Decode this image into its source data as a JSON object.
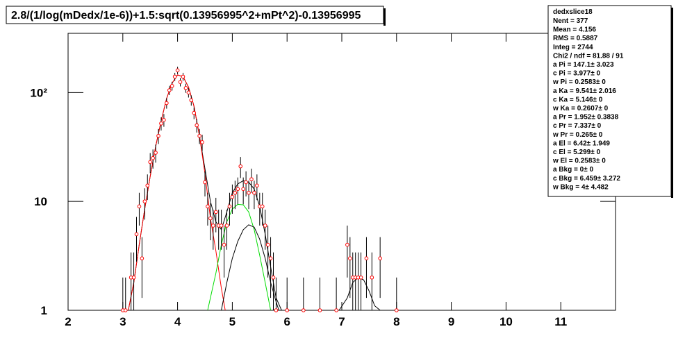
{
  "chart_data": {
    "type": "histogram-fit",
    "title": "2.8/(1/log(mDedx/1e-6))+1.5:sqrt(0.13956995^2+mPt^2)-0.13956995",
    "log_y": true,
    "xlim": [
      2,
      12
    ],
    "ylim": [
      1,
      350
    ],
    "xticks": [
      2,
      3,
      4,
      5,
      6,
      7,
      8,
      9,
      10,
      11
    ],
    "yticks": [
      1,
      10,
      {
        "value": 100,
        "label": "10²"
      }
    ],
    "points": {
      "color": "#ff0000",
      "x": [
        3.0,
        3.05,
        3.15,
        3.2,
        3.25,
        3.3,
        3.35,
        3.4,
        3.45,
        3.5,
        3.55,
        3.6,
        3.65,
        3.7,
        3.75,
        3.8,
        3.85,
        3.9,
        3.95,
        4.0,
        4.05,
        4.1,
        4.15,
        4.2,
        4.25,
        4.3,
        4.35,
        4.4,
        4.45,
        4.5,
        4.55,
        4.6,
        4.65,
        4.7,
        4.75,
        4.8,
        4.85,
        4.9,
        4.95,
        5.0,
        5.05,
        5.1,
        5.15,
        5.2,
        5.25,
        5.3,
        5.35,
        5.4,
        5.45,
        5.5,
        5.55,
        5.6,
        5.65,
        5.7,
        5.75,
        5.8,
        6.0,
        6.3,
        6.6,
        6.9,
        7.1,
        7.15,
        7.2,
        7.25,
        7.3,
        7.35,
        7.45,
        7.55,
        7.7,
        8.0
      ],
      "values": [
        1,
        1,
        2,
        2,
        5,
        9,
        3,
        10,
        14,
        23,
        25,
        28,
        40,
        52,
        56,
        80,
        105,
        115,
        140,
        160,
        125,
        140,
        110,
        100,
        85,
        65,
        50,
        40,
        35,
        15,
        9,
        7,
        6,
        8,
        6,
        6,
        4,
        6,
        9,
        11,
        12,
        13,
        21,
        13,
        15,
        12,
        16,
        12,
        14,
        9,
        9,
        6,
        4,
        3,
        2,
        1,
        1,
        1,
        1,
        1,
        4,
        3,
        2,
        2,
        2,
        2,
        3,
        2,
        3,
        1
      ],
      "errors": [
        1,
        1,
        1.4,
        1.4,
        2.2,
        3,
        1.7,
        3.2,
        3.7,
        4.8,
        5,
        5.3,
        6.3,
        7.2,
        7.5,
        8.9,
        10.2,
        10.7,
        11.8,
        12.6,
        11.2,
        11.8,
        10.5,
        10,
        9.2,
        8.1,
        7.1,
        6.3,
        5.9,
        3.9,
        3,
        2.6,
        2.4,
        2.8,
        2.4,
        2.4,
        2,
        2.4,
        3,
        3.3,
        3.5,
        3.6,
        4.6,
        3.6,
        3.9,
        3.5,
        4,
        3.5,
        3.7,
        3,
        3,
        2.4,
        2,
        1.7,
        1.4,
        1,
        1,
        1,
        1,
        1,
        2,
        1.7,
        1.4,
        1.4,
        1.4,
        1.4,
        1.7,
        1.4,
        1.7,
        1
      ]
    },
    "series": [
      {
        "color": "#000000",
        "x": [
          3.1,
          3.2,
          3.3,
          3.4,
          3.5,
          3.6,
          3.7,
          3.8,
          3.9,
          4.0,
          4.1,
          4.2,
          4.3,
          4.4,
          4.5,
          4.6,
          4.7,
          4.8,
          4.9,
          5.0,
          5.1,
          5.2,
          5.3,
          5.4,
          5.5,
          5.6,
          5.7,
          5.8,
          5.9,
          6.95,
          7.1,
          7.2,
          7.3,
          7.4,
          7.5,
          7.6,
          7.7
        ],
        "values": [
          1,
          1.8,
          4,
          8.5,
          17,
          32,
          55,
          88,
          122,
          145,
          140,
          112,
          75,
          40,
          20,
          10,
          6.5,
          5.5,
          8,
          12,
          14.5,
          15.5,
          15,
          13,
          9,
          5,
          2.5,
          1.3,
          1,
          1,
          1.3,
          1.8,
          2,
          1.9,
          1.5,
          1.1,
          1
        ]
      },
      {
        "color": "#ff0000",
        "x": [
          3.1,
          3.2,
          3.3,
          3.4,
          3.5,
          3.6,
          3.7,
          3.8,
          3.9,
          4.0,
          4.1,
          4.2,
          4.3,
          4.4,
          4.5,
          4.6,
          4.7,
          4.8,
          4.87
        ],
        "values": [
          1,
          1.8,
          4,
          8.5,
          17,
          32,
          55,
          88,
          122,
          145,
          140,
          112,
          75,
          40,
          18,
          7,
          3.5,
          1.6,
          1
        ]
      },
      {
        "color": "#00dd00",
        "x": [
          4.55,
          4.7,
          4.8,
          4.9,
          5.0,
          5.1,
          5.2,
          5.3,
          5.4,
          5.5,
          5.6,
          5.7
        ],
        "values": [
          1,
          2.2,
          4,
          6.5,
          8.5,
          9.4,
          9.3,
          8,
          5.5,
          3.2,
          1.8,
          1
        ]
      },
      {
        "color": "#000000",
        "x": [
          4.8,
          4.9,
          5.0,
          5.1,
          5.2,
          5.3,
          5.4,
          5.5,
          5.6,
          5.7,
          5.8,
          5.85
        ],
        "values": [
          1,
          1.8,
          3,
          4.3,
          5.5,
          6.1,
          5.8,
          4.5,
          3,
          1.8,
          1.2,
          1
        ]
      }
    ],
    "stats": {
      "name": "dedxslice18",
      "lines": [
        "Nent = 377",
        "Mean  =  4.156",
        "RMS   =  0.5887",
        "Integ =    2744",
        "Chi2 / ndf = 81.88 / 91",
        "a Pi     = 147.1± 3.023",
        "c Pi     = 3.977±     0",
        "w Pi     = 0.2583±     0",
        "a Ka     = 9.541± 2.016",
        "c Ka     = 5.146±     0",
        "w Ka     = 0.2607±     0",
        "a Pr     = 1.952± 0.3838",
        "c Pr     = 7.337±     0",
        "w Pr     = 0.265±     0",
        "a El     =  6.42± 1.949",
        "c El     = 5.299±     0",
        "w El     = 0.2583±     0",
        "a Bkg    =      0±     0",
        "c Bkg    = 6.459± 3.272",
        "w Bkg    =      4± 4.482"
      ]
    }
  }
}
